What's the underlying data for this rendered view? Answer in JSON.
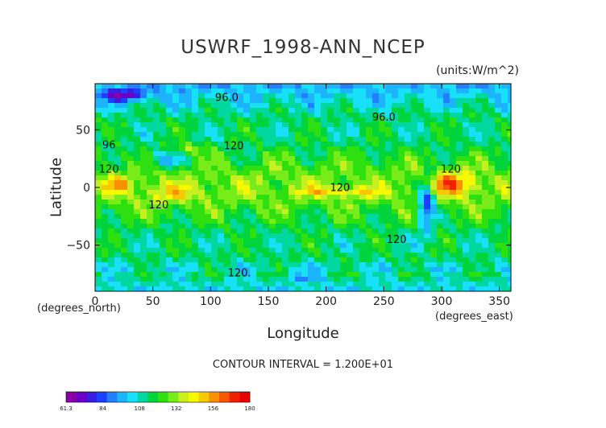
{
  "chart_data": {
    "type": "heatmap",
    "title": "USWRF_1998-ANN_NCEP",
    "units_label": "(units:W/m^2)",
    "xlabel": "Longitude",
    "ylabel": "Latitude",
    "x_note": "(degrees_east)",
    "y_note": "(degrees_north)",
    "xlim": [
      0,
      360
    ],
    "ylim": [
      -90,
      90
    ],
    "x_ticks": [
      "0",
      "50",
      "100",
      "150",
      "200",
      "250",
      "300",
      "350"
    ],
    "y_ticks": [
      "50",
      "0",
      "−50"
    ],
    "contour_interval": "CONTOUR INTERVAL = 1.200E+01",
    "contour_labels": [
      {
        "text": "96.0",
        "lon": 114,
        "lat": 75
      },
      {
        "text": "96.0",
        "lon": 250,
        "lat": 58
      },
      {
        "text": "96",
        "lon": 12,
        "lat": 34
      },
      {
        "text": "120",
        "lon": 120,
        "lat": 33
      },
      {
        "text": "120",
        "lon": 12,
        "lat": 13
      },
      {
        "text": "120",
        "lon": 55,
        "lat": -18
      },
      {
        "text": "120",
        "lon": 212,
        "lat": -3
      },
      {
        "text": "120",
        "lon": 261,
        "lat": -48
      },
      {
        "text": "120",
        "lon": 308,
        "lat": 13
      },
      {
        "text": "120.",
        "lon": 125,
        "lat": -77
      }
    ],
    "colorbar": {
      "min_label": "61.3",
      "max_label": "180",
      "tick_labels": [
        "61.3",
        "84",
        "108",
        "132",
        "156",
        "180"
      ],
      "colors": [
        "#8a00a8",
        "#6a00c8",
        "#3a1ee0",
        "#1c40ff",
        "#2280ff",
        "#1cb4ff",
        "#18e0f8",
        "#00d8a0",
        "#00d43c",
        "#2ee010",
        "#78ec18",
        "#c8f020",
        "#f8f800",
        "#f8c800",
        "#f89000",
        "#f85800",
        "#f02000",
        "#e80000"
      ]
    }
  }
}
